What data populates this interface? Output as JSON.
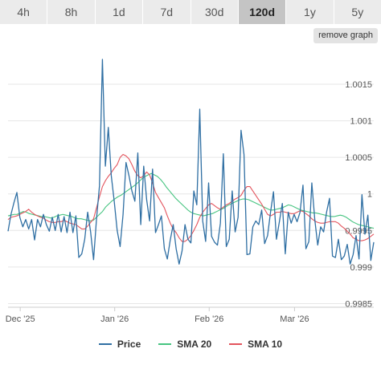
{
  "tabs": [
    {
      "label": "4h",
      "active": false
    },
    {
      "label": "8h",
      "active": false
    },
    {
      "label": "1d",
      "active": false
    },
    {
      "label": "7d",
      "active": false
    },
    {
      "label": "30d",
      "active": false
    },
    {
      "label": "120d",
      "active": true
    },
    {
      "label": "1y",
      "active": false
    },
    {
      "label": "5y",
      "active": false
    }
  ],
  "remove_button": "remove graph",
  "chart_data": {
    "type": "line",
    "title": "",
    "xlabel": "",
    "ylabel": "",
    "ylim": [
      0.99845,
      1.00195
    ],
    "yticks": [
      0.9985,
      0.999,
      0.9995,
      1,
      1.0005,
      1.001,
      1.0015
    ],
    "ytick_labels": [
      "0.9985",
      "0.999",
      "0.9995",
      "1",
      "1.0005",
      "1.001",
      "1.0015"
    ],
    "x_range": [
      0,
      120
    ],
    "x_ticks": [
      {
        "at": 4,
        "label": "Dec '25"
      },
      {
        "at": 35,
        "label": "Jan '26"
      },
      {
        "at": 66,
        "label": "Feb '26"
      },
      {
        "at": 94,
        "label": "Mar '26"
      }
    ],
    "grid": true,
    "legend_position": "bottom",
    "series": [
      {
        "name": "Price",
        "color": "#2f6fa3",
        "width": 1.3,
        "values": [
          0.99949,
          0.99972,
          0.99988,
          1.00002,
          0.99968,
          0.99955,
          0.99965,
          0.99952,
          0.99965,
          0.99937,
          0.99965,
          0.99955,
          0.99972,
          0.99958,
          0.99949,
          0.99968,
          0.9995,
          0.99972,
          0.99948,
          0.99969,
          0.99947,
          0.99975,
          0.99947,
          0.9997,
          0.99913,
          0.99918,
          0.99938,
          0.99975,
          0.99948,
          0.9991,
          0.99966,
          1.00011,
          1.00184,
          1.00038,
          1.00091,
          1.00025,
          0.9999,
          0.9995,
          0.99928,
          0.99972,
          1.00043,
          1.00025,
          1.00004,
          0.9999,
          1.00056,
          0.99958,
          1.00038,
          0.99992,
          0.99963,
          1.00034,
          0.99947,
          0.99958,
          0.9997,
          0.99925,
          0.99911,
          0.99937,
          0.99958,
          0.99925,
          0.99904,
          0.99922,
          0.99958,
          0.99938,
          0.99933,
          1.00004,
          0.99985,
          1.00116,
          0.99963,
          0.99935,
          1.00015,
          0.99942,
          0.99934,
          0.9993,
          0.9996,
          1.00055,
          0.99928,
          0.99938,
          1.00004,
          0.99948,
          0.99968,
          1.00087,
          1.00054,
          0.99917,
          0.99918,
          0.99955,
          0.99963,
          0.99958,
          0.99978,
          0.99932,
          0.99943,
          0.99975,
          1.00003,
          0.99938,
          0.99962,
          0.99987,
          0.99918,
          0.99975,
          0.9996,
          0.99972,
          0.99962,
          0.99975,
          1.00012,
          0.99925,
          0.99935,
          1.00015,
          0.99965,
          0.9993,
          0.99955,
          0.99948,
          0.99975,
          0.99994,
          0.99915,
          0.99913,
          0.99938,
          0.9991,
          0.99915,
          0.99931,
          0.99904,
          0.99917,
          0.99943,
          0.99911,
          0.99999,
          0.99945,
          0.99971,
          0.99909,
          0.99934
        ]
      },
      {
        "name": "SMA 20",
        "color": "#46c480",
        "width": 1.1,
        "values": [
          0.9997,
          0.99971,
          0.99972,
          0.99972,
          0.99974,
          0.99976,
          0.99975,
          0.99973,
          0.99972,
          0.99971,
          0.9997,
          0.99969,
          0.99969,
          0.99968,
          0.99967,
          0.99968,
          0.9997,
          0.99971,
          0.99972,
          0.99971,
          0.9997,
          0.99969,
          0.99967,
          0.99966,
          0.99966,
          0.99965,
          0.99964,
          0.99963,
          0.99964,
          0.99968,
          0.99972,
          0.99976,
          0.99982,
          0.99986,
          0.9999,
          0.99993,
          0.99996,
          0.99998,
          1.00001,
          1.00004,
          1.00007,
          1.0001,
          1.00013,
          1.00017,
          1.00021,
          1.00024,
          1.00026,
          1.00028,
          1.00026,
          1.00024,
          1.0002,
          1.00015,
          1.00009,
          1.00004,
          0.99999,
          0.99994,
          0.9999,
          0.99986,
          0.99982,
          0.99978,
          0.99975,
          0.99973,
          0.99972,
          0.99971,
          0.9997,
          0.99971,
          0.99972,
          0.99973,
          0.99975,
          0.99977,
          0.99979,
          0.99981,
          0.99984,
          0.99986,
          0.99988,
          0.9999,
          0.99992,
          0.99993,
          0.99993,
          0.99992,
          0.9999,
          0.99988,
          0.99986,
          0.99984,
          0.99982,
          0.9998,
          0.99978,
          0.99978,
          0.99979,
          0.9998,
          0.99981,
          0.99983,
          0.99985,
          0.99984,
          0.99982,
          0.9998,
          0.99978,
          0.99977,
          0.99976,
          0.99975,
          0.99974,
          0.99974,
          0.99973,
          0.99972,
          0.99971,
          0.9997,
          0.99969,
          0.99969,
          0.9997,
          0.99971,
          0.9997,
          0.99968,
          0.99965,
          0.99962,
          0.9996,
          0.99958,
          0.99957,
          0.99956,
          0.99955,
          0.99954,
          0.99953
        ]
      },
      {
        "name": "SMA 10",
        "color": "#e3545d",
        "width": 1.1,
        "values": [
          0.99965,
          0.99968,
          0.99969,
          0.9997,
          0.99972,
          0.99974,
          0.99976,
          0.99979,
          0.99975,
          0.99972,
          0.9997,
          0.99968,
          0.99967,
          0.99964,
          0.99962,
          0.99961,
          0.99961,
          0.99962,
          0.99962,
          0.99964,
          0.99962,
          0.9996,
          0.99959,
          0.99958,
          0.99955,
          0.99952,
          0.99952,
          0.99956,
          0.99961,
          0.99966,
          0.99981,
          0.99996,
          1.0001,
          1.00018,
          1.00024,
          1.00029,
          1.00035,
          1.0004,
          1.0005,
          1.00054,
          1.00052,
          1.00048,
          1.0004,
          1.00031,
          1.00025,
          1.00022,
          1.00025,
          1.0003,
          1.00026,
          1.00015,
          1.00002,
          0.99995,
          0.99988,
          0.99981,
          0.9997,
          0.9996,
          0.99952,
          0.99947,
          0.9994,
          0.99935,
          0.99935,
          0.99938,
          0.99943,
          0.9995,
          0.99958,
          0.99968,
          0.99975,
          0.9998,
          0.99985,
          0.99987,
          0.99984,
          0.99981,
          0.99979,
          0.99982,
          0.99985,
          0.99987,
          0.9999,
          0.99993,
          0.99995,
          0.99998,
          1.00005,
          1.0001,
          1.0001,
          1.00004,
          0.99998,
          0.99992,
          0.99986,
          0.99979,
          0.99972,
          0.9997,
          0.99972,
          0.99975,
          0.99975,
          0.99976,
          0.99975,
          0.99974,
          0.99973,
          0.99973,
          0.99975,
          0.99977,
          0.99976,
          0.99973,
          0.9997,
          0.99966,
          0.99963,
          0.99961,
          0.9996,
          0.9996,
          0.99961,
          0.99962,
          0.99962,
          0.99962,
          0.9996,
          0.99956,
          0.99953,
          0.99949,
          0.99945,
          0.9994,
          0.99938,
          0.99936,
          0.99936,
          0.99937,
          0.99939,
          0.99942,
          0.99945
        ]
      }
    ]
  }
}
